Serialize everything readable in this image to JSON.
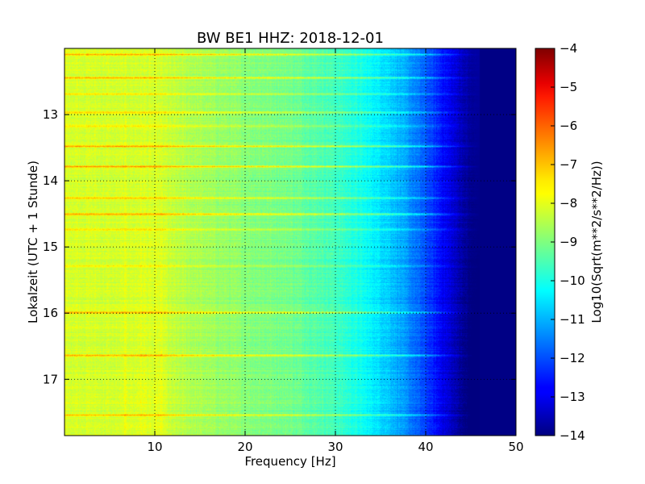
{
  "chart_data": {
    "type": "heatmap",
    "title": "BW BE1 HHZ: 2018-12-01",
    "xlabel": "Frequency [Hz]",
    "ylabel": "Lokalzeit (UTC + 1 Stunde)",
    "colorbar_label": "Log10(Sqrt(m**2/s**2/Hz))",
    "colormap": "jet",
    "grid": true,
    "xlim": [
      0,
      50
    ],
    "ylim": [
      12.0,
      17.85
    ],
    "y_inverted": true,
    "clim": [
      -14,
      -4
    ],
    "x_ticks": [
      10,
      20,
      30,
      40,
      50
    ],
    "x_tick_labels": [
      "10",
      "20",
      "30",
      "40",
      "50"
    ],
    "y_ticks": [
      13,
      14,
      15,
      16,
      17
    ],
    "y_tick_labels": [
      "13",
      "14",
      "15",
      "16",
      "17"
    ],
    "colorbar_ticks": [
      -4,
      -5,
      -6,
      -7,
      -8,
      -9,
      -10,
      -11,
      -12,
      -13,
      -14
    ],
    "colorbar_tick_labels": [
      "−4",
      "−5",
      "−6",
      "−7",
      "−8",
      "−9",
      "−10",
      "−11",
      "−12",
      "−13",
      "−14"
    ],
    "spectrum_profile": {
      "freq_hz": [
        0,
        5,
        10,
        15,
        20,
        25,
        30,
        33,
        36,
        38,
        40,
        42,
        44,
        45,
        50
      ],
      "level": [
        -8.1,
        -8.2,
        -8.2,
        -8.6,
        -8.9,
        -9.1,
        -9.6,
        -10.1,
        -10.7,
        -11.3,
        -12.0,
        -12.8,
        -13.6,
        -13.95,
        -13.95
      ]
    },
    "horizontal_lines": [
      {
        "time": 12.08,
        "level_offset": 1.2
      },
      {
        "time": 12.44,
        "level_offset": 1.1
      },
      {
        "time": 12.68,
        "level_offset": 0.7
      },
      {
        "time": 12.96,
        "level_offset": 0.9
      },
      {
        "time": 13.17,
        "level_offset": 0.7
      },
      {
        "time": 13.48,
        "level_offset": 1.3
      },
      {
        "time": 13.78,
        "level_offset": 1.3
      },
      {
        "time": 14.25,
        "level_offset": 1.0
      },
      {
        "time": 14.5,
        "level_offset": 1.3
      },
      {
        "time": 14.73,
        "level_offset": 0.6
      },
      {
        "time": 15.28,
        "level_offset": 0.6
      },
      {
        "time": 15.98,
        "level_offset": 1.3
      },
      {
        "time": 16.63,
        "level_offset": 1.3
      },
      {
        "time": 17.53,
        "level_offset": 1.1
      }
    ]
  }
}
